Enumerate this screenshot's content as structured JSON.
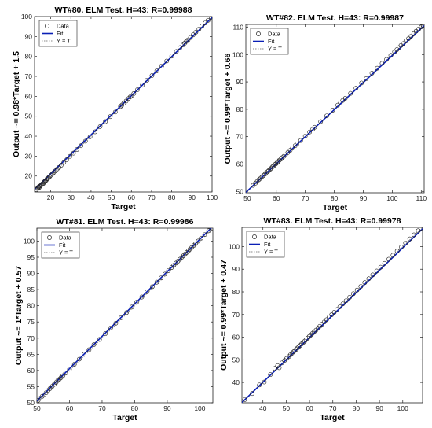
{
  "chart_data": [
    {
      "type": "scatter",
      "title": "WT#80. ELM Test. H=43: R=0.99988",
      "xlabel": "Target",
      "ylabel": "Output ~= 0.98*Target + 1.5",
      "xlim": [
        12,
        100
      ],
      "ylim": [
        12,
        100
      ],
      "xticks": [
        20,
        30,
        40,
        50,
        60,
        70,
        80,
        90,
        100
      ],
      "yticks": [
        20,
        30,
        40,
        50,
        60,
        70,
        80,
        90,
        100
      ],
      "fit": {
        "slope": 0.98,
        "intercept": 1.5
      },
      "legend": {
        "position": "top-left",
        "entries": [
          "Data",
          "Fit",
          "Y = T"
        ]
      },
      "points": [
        [
          13,
          13.2
        ],
        [
          13.4,
          13.8
        ],
        [
          13.8,
          14.1
        ],
        [
          14,
          14.6
        ],
        [
          14.3,
          14.2
        ],
        [
          14.6,
          14.9
        ],
        [
          14.9,
          15.1
        ],
        [
          15.2,
          15.4
        ],
        [
          15.6,
          15.8
        ],
        [
          15.9,
          16.1
        ],
        [
          16.3,
          16.2
        ],
        [
          16.7,
          16.9
        ],
        [
          17,
          17.3
        ],
        [
          17.4,
          17.6
        ],
        [
          17.8,
          17.9
        ],
        [
          18.2,
          18.6
        ],
        [
          18.6,
          18.8
        ],
        [
          19,
          19.3
        ],
        [
          19.5,
          19.7
        ],
        [
          20.1,
          20.4
        ],
        [
          20.8,
          21.1
        ],
        [
          21.5,
          21.8
        ],
        [
          22.3,
          22.6
        ],
        [
          23.2,
          23.5
        ],
        [
          24.1,
          24.3
        ],
        [
          25.2,
          25.4
        ],
        [
          26.5,
          26.8
        ],
        [
          28,
          28.2
        ],
        [
          29.6,
          29.9
        ],
        [
          31.3,
          31.5
        ],
        [
          33,
          33.3
        ],
        [
          35,
          35.2
        ],
        [
          37.2,
          37.5
        ],
        [
          39.5,
          39.7
        ],
        [
          42,
          42.2
        ],
        [
          44.5,
          44.8
        ],
        [
          47.1,
          47.3
        ],
        [
          49.5,
          49.8
        ],
        [
          52,
          52.1
        ],
        [
          54.6,
          54.9
        ],
        [
          55.3,
          55.6
        ],
        [
          56.2,
          56.5
        ],
        [
          57.4,
          57.6
        ],
        [
          58.6,
          58.9
        ],
        [
          59.4,
          59.7
        ],
        [
          60.1,
          60.3
        ],
        [
          61.2,
          61.4
        ],
        [
          63,
          63.3
        ],
        [
          65.4,
          65.6
        ],
        [
          67.8,
          68.1
        ],
        [
          70.2,
          70.4
        ],
        [
          72.6,
          72.8
        ],
        [
          75,
          75.2
        ],
        [
          77.5,
          77.7
        ],
        [
          80,
          80.2
        ],
        [
          82.3,
          82.5
        ],
        [
          84.1,
          84.4
        ],
        [
          85.5,
          85.7
        ],
        [
          86.4,
          86.6
        ],
        [
          87.2,
          87.5
        ],
        [
          88.1,
          88.3
        ],
        [
          89.3,
          89.5
        ],
        [
          90.6,
          90.8
        ],
        [
          92,
          92.2
        ],
        [
          93.5,
          93.7
        ],
        [
          95,
          95.2
        ],
        [
          96.6,
          96.8
        ],
        [
          98,
          98.1
        ],
        [
          99.6,
          99.7
        ]
      ]
    },
    {
      "type": "scatter",
      "title": "WT#82. ELM Test. H=43: R=0.99987",
      "xlabel": "Target",
      "ylabel": "Output ~= 0.99*Target + 0.66",
      "xlim": [
        49.5,
        111
      ],
      "ylim": [
        49.5,
        111
      ],
      "xticks": [
        50,
        60,
        70,
        80,
        90,
        100,
        110
      ],
      "yticks": [
        50,
        60,
        70,
        80,
        90,
        100,
        110
      ],
      "fit": {
        "slope": 0.99,
        "intercept": 0.66
      },
      "legend": {
        "position": "top-left",
        "entries": [
          "Data",
          "Fit",
          "Y = T"
        ]
      },
      "points": [
        [
          52,
          52.2
        ],
        [
          52.8,
          53
        ],
        [
          53.4,
          53.6
        ],
        [
          54,
          54.3
        ],
        [
          54.6,
          54.8
        ],
        [
          55.1,
          55.4
        ],
        [
          55.6,
          55.8
        ],
        [
          56.1,
          56.3
        ],
        [
          56.5,
          56.8
        ],
        [
          57,
          57.2
        ],
        [
          57.4,
          57.6
        ],
        [
          57.9,
          58.1
        ],
        [
          58.3,
          58.5
        ],
        [
          58.7,
          59
        ],
        [
          59.1,
          59.3
        ],
        [
          59.5,
          59.8
        ],
        [
          59.9,
          60.1
        ],
        [
          60.3,
          60.5
        ],
        [
          60.7,
          60.9
        ],
        [
          61.1,
          61.4
        ],
        [
          61.6,
          61.8
        ],
        [
          62,
          62.3
        ],
        [
          62.6,
          62.8
        ],
        [
          63.2,
          63.4
        ],
        [
          64,
          64.2
        ],
        [
          64.8,
          65
        ],
        [
          65.6,
          65.9
        ],
        [
          66.5,
          66.7
        ],
        [
          67.1,
          67.3
        ],
        [
          68.4,
          68.6
        ],
        [
          70,
          70.2
        ],
        [
          71.5,
          71.7
        ],
        [
          72.6,
          72.8
        ],
        [
          73.2,
          73.4
        ],
        [
          75.3,
          75.5
        ],
        [
          77.4,
          77.6
        ],
        [
          79.5,
          79.7
        ],
        [
          81.2,
          81.5
        ],
        [
          82.1,
          82.3
        ],
        [
          82.9,
          83.2
        ],
        [
          83.8,
          84
        ],
        [
          85.6,
          85.8
        ],
        [
          87.5,
          87.7
        ],
        [
          89.4,
          89.6
        ],
        [
          91,
          91.2
        ],
        [
          93,
          93.2
        ],
        [
          94.8,
          95
        ],
        [
          96.5,
          96.8
        ],
        [
          98,
          98.2
        ],
        [
          99.5,
          99.7
        ],
        [
          100.8,
          101
        ],
        [
          101.6,
          101.8
        ],
        [
          102.3,
          102.5
        ],
        [
          103,
          103.3
        ],
        [
          103.8,
          104
        ],
        [
          104.7,
          104.9
        ],
        [
          105.6,
          105.8
        ],
        [
          106.5,
          106.7
        ],
        [
          107.4,
          107.6
        ],
        [
          108.2,
          108.5
        ],
        [
          109.1,
          109.3
        ],
        [
          110,
          110.1
        ],
        [
          110.6,
          110.7
        ]
      ]
    },
    {
      "type": "scatter",
      "title": "WT#81. ELM Test. H=43: R=0.99986",
      "xlabel": "Target",
      "ylabel": "Output ~= 1*Target + 0.57",
      "xlim": [
        50,
        104
      ],
      "ylim": [
        50,
        104
      ],
      "xticks": [
        50,
        60,
        70,
        80,
        90,
        100
      ],
      "yticks": [
        50,
        55,
        60,
        65,
        70,
        75,
        80,
        85,
        90,
        95,
        100
      ],
      "fit": {
        "slope": 1,
        "intercept": 0.57
      },
      "legend": {
        "position": "top-left",
        "entries": [
          "Data",
          "Fit",
          "Y = T"
        ]
      },
      "points": [
        [
          50.4,
          50.8
        ],
        [
          51,
          51.4
        ],
        [
          51.6,
          52
        ],
        [
          52.2,
          52.5
        ],
        [
          52.8,
          53.1
        ],
        [
          53.4,
          53.8
        ],
        [
          54,
          54.4
        ],
        [
          54.7,
          55.1
        ],
        [
          55.3,
          55.7
        ],
        [
          55.9,
          56.3
        ],
        [
          56.4,
          56.9
        ],
        [
          56.9,
          57.3
        ],
        [
          57.4,
          57.8
        ],
        [
          58,
          58.4
        ],
        [
          58.8,
          59.2
        ],
        [
          60,
          60.4
        ],
        [
          61.5,
          61.9
        ],
        [
          63,
          63.5
        ],
        [
          64.5,
          65
        ],
        [
          66,
          66.4
        ],
        [
          67.5,
          68
        ],
        [
          69.2,
          69.6
        ],
        [
          71,
          71.4
        ],
        [
          72.6,
          73.1
        ],
        [
          74.2,
          74.6
        ],
        [
          75.8,
          76.3
        ],
        [
          77.5,
          77.9
        ],
        [
          79.1,
          79.6
        ],
        [
          80.6,
          81.1
        ],
        [
          82.2,
          82.7
        ],
        [
          83.8,
          84.3
        ],
        [
          85.4,
          85.9
        ],
        [
          86.8,
          87.3
        ],
        [
          88.1,
          88.6
        ],
        [
          89.3,
          89.8
        ],
        [
          90.4,
          90.9
        ],
        [
          91.3,
          91.8
        ],
        [
          92,
          92.5
        ],
        [
          92.7,
          93.2
        ],
        [
          93.3,
          93.8
        ],
        [
          93.9,
          94.4
        ],
        [
          94.5,
          95
        ],
        [
          95,
          95.5
        ],
        [
          95.5,
          96
        ],
        [
          96,
          96.5
        ],
        [
          96.5,
          97
        ],
        [
          97,
          97.5
        ],
        [
          97.5,
          98
        ],
        [
          98.1,
          98.6
        ],
        [
          98.7,
          99.2
        ],
        [
          99.5,
          100
        ],
        [
          100.4,
          100.9
        ],
        [
          101.5,
          102
        ],
        [
          102.7,
          103.2
        ],
        [
          103.6,
          104
        ]
      ]
    },
    {
      "type": "scatter",
      "title": "WT#83. ELM Test. H=43: R=0.99978",
      "xlabel": "Target",
      "ylabel": "Output ~= 0.99*Target + 0.47",
      "xlim": [
        31,
        108.5
      ],
      "ylim": [
        31,
        108.5
      ],
      "xticks": [
        40,
        50,
        60,
        70,
        80,
        90,
        100
      ],
      "yticks": [
        40,
        50,
        60,
        70,
        80,
        90,
        100
      ],
      "fit": {
        "slope": 0.99,
        "intercept": 0.47
      },
      "legend": {
        "position": "top-left",
        "entries": [
          "Data",
          "Fit",
          "Y = T"
        ]
      },
      "points": [
        [
          32.2,
          32.4
        ],
        [
          35.4,
          35.1
        ],
        [
          38.5,
          38.9
        ],
        [
          40.6,
          40.2
        ],
        [
          43.2,
          43.5
        ],
        [
          45.1,
          46.2
        ],
        [
          46.3,
          47.4
        ],
        [
          47,
          46.5
        ],
        [
          48.1,
          48.6
        ],
        [
          49.3,
          49.7
        ],
        [
          50.2,
          50.6
        ],
        [
          51.1,
          51.4
        ],
        [
          51.8,
          52.2
        ],
        [
          52.5,
          52.9
        ],
        [
          53.1,
          53.5
        ],
        [
          53.7,
          54.1
        ],
        [
          54.3,
          54.6
        ],
        [
          54.8,
          55.2
        ],
        [
          55.4,
          55.8
        ],
        [
          56,
          56.3
        ],
        [
          56.6,
          57
        ],
        [
          57.2,
          57.5
        ],
        [
          57.9,
          58.2
        ],
        [
          58.5,
          58.9
        ],
        [
          59.2,
          59.6
        ],
        [
          59.9,
          60.3
        ],
        [
          60.6,
          61
        ],
        [
          61.3,
          61.7
        ],
        [
          62,
          62.4
        ],
        [
          62.8,
          63.1
        ],
        [
          63.6,
          64
        ],
        [
          64.4,
          64.8
        ],
        [
          65.3,
          65.7
        ],
        [
          66.3,
          66.7
        ],
        [
          67.3,
          67.7
        ],
        [
          68.4,
          68.8
        ],
        [
          69.5,
          69.9
        ],
        [
          70.6,
          71
        ],
        [
          71.8,
          72.2
        ],
        [
          73,
          73.4
        ],
        [
          74.3,
          74.7
        ],
        [
          75.7,
          76.1
        ],
        [
          77.2,
          77.6
        ],
        [
          78.8,
          79.2
        ],
        [
          80.4,
          80.8
        ],
        [
          82,
          82.4
        ],
        [
          83.7,
          84.1
        ],
        [
          85.4,
          85.8
        ],
        [
          87.1,
          87.5
        ],
        [
          88.8,
          89.2
        ],
        [
          90.5,
          90.9
        ],
        [
          92.2,
          92.6
        ],
        [
          94,
          94.4
        ],
        [
          95.8,
          96.2
        ],
        [
          97.6,
          98
        ],
        [
          99.4,
          99.8
        ],
        [
          101.2,
          101.6
        ],
        [
          103,
          103.4
        ],
        [
          104.8,
          105.2
        ],
        [
          106.6,
          107
        ],
        [
          107.9,
          108.2
        ]
      ]
    }
  ],
  "colors": {
    "fit": "#0a1fb5",
    "identity": "#8a8a8a",
    "marker": "#222222",
    "axis": "#222222"
  }
}
